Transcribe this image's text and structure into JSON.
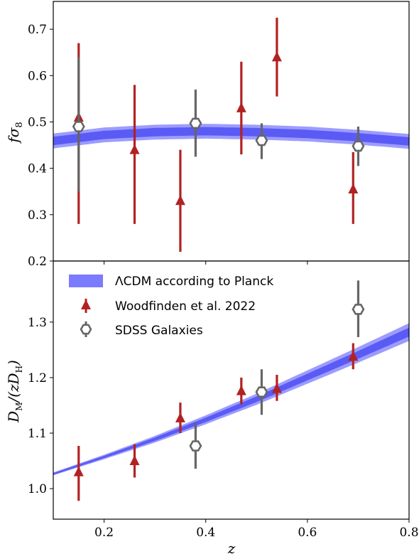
{
  "chart_data": [
    {
      "type": "scatter",
      "panel": "top",
      "ylabel": "fσ8",
      "ylim": [
        0.2,
        0.76
      ],
      "xlim": [
        0.1,
        0.8
      ],
      "yticks": [
        "0.2",
        "0.3",
        "0.4",
        "0.5",
        "0.6",
        "0.7"
      ],
      "ytick_values": [
        0.2,
        0.3,
        0.4,
        0.5,
        0.6,
        0.7
      ],
      "grid": false,
      "band": {
        "name": "ΛCDM according to Planck",
        "color": "#5555ee",
        "x": [
          0.1,
          0.2,
          0.3,
          0.4,
          0.5,
          0.6,
          0.7,
          0.8
        ],
        "inner": [
          [
            0.45,
            0.468
          ],
          [
            0.463,
            0.481
          ],
          [
            0.469,
            0.487
          ],
          [
            0.471,
            0.489
          ],
          [
            0.469,
            0.487
          ],
          [
            0.465,
            0.483
          ],
          [
            0.458,
            0.476
          ],
          [
            0.449,
            0.467
          ]
        ],
        "outer": [
          [
            0.443,
            0.475
          ],
          [
            0.456,
            0.488
          ],
          [
            0.462,
            0.494
          ],
          [
            0.464,
            0.496
          ],
          [
            0.462,
            0.494
          ],
          [
            0.458,
            0.49
          ],
          [
            0.451,
            0.483
          ],
          [
            0.442,
            0.474
          ]
        ]
      },
      "series": [
        {
          "name": "Woodfinden et al. 2022",
          "color": "#b22222",
          "marker": "triangle",
          "points": [
            {
              "x": 0.15,
              "y": 0.51,
              "lo": 0.28,
              "hi": 0.67
            },
            {
              "x": 0.26,
              "y": 0.44,
              "lo": 0.28,
              "hi": 0.58
            },
            {
              "x": 0.35,
              "y": 0.33,
              "lo": 0.22,
              "hi": 0.44
            },
            {
              "x": 0.47,
              "y": 0.53,
              "lo": 0.43,
              "hi": 0.63
            },
            {
              "x": 0.54,
              "y": 0.64,
              "lo": 0.555,
              "hi": 0.725
            },
            {
              "x": 0.69,
              "y": 0.355,
              "lo": 0.28,
              "hi": 0.435
            }
          ]
        },
        {
          "name": "SDSS Galaxies",
          "color": "#666666",
          "marker": "hexagon",
          "points": [
            {
              "x": 0.15,
              "y": 0.49,
              "lo": 0.35,
              "hi": 0.64
            },
            {
              "x": 0.38,
              "y": 0.497,
              "lo": 0.425,
              "hi": 0.57
            },
            {
              "x": 0.51,
              "y": 0.46,
              "lo": 0.42,
              "hi": 0.497
            },
            {
              "x": 0.7,
              "y": 0.448,
              "lo": 0.405,
              "hi": 0.49
            }
          ]
        }
      ]
    },
    {
      "type": "scatter",
      "panel": "bottom",
      "xlabel": "z",
      "ylabel": "DM/(zDH)",
      "xlim": [
        0.1,
        0.8
      ],
      "ylim": [
        0.945,
        1.41
      ],
      "xticks": [
        "0.2",
        "0.4",
        "0.6",
        "0.8"
      ],
      "xtick_values": [
        0.2,
        0.4,
        0.6,
        0.8
      ],
      "yticks": [
        "1.0",
        "1.1",
        "1.2",
        "1.3"
      ],
      "ytick_values": [
        1.0,
        1.1,
        1.2,
        1.3
      ],
      "grid": false,
      "legend_position": "upper-left",
      "band": {
        "name": "ΛCDM according to Planck",
        "color": "#5555ee",
        "x": [
          0.1,
          0.2,
          0.3,
          0.4,
          0.5,
          0.6,
          0.7,
          0.8
        ],
        "inner": [
          [
            1.025,
            1.028
          ],
          [
            1.055,
            1.059
          ],
          [
            1.086,
            1.092
          ],
          [
            1.12,
            1.128
          ],
          [
            1.156,
            1.166
          ],
          [
            1.195,
            1.207
          ],
          [
            1.234,
            1.248
          ],
          [
            1.274,
            1.29
          ]
        ],
        "outer": [
          [
            1.024,
            1.029
          ],
          [
            1.053,
            1.061
          ],
          [
            1.083,
            1.095
          ],
          [
            1.116,
            1.132
          ],
          [
            1.151,
            1.171
          ],
          [
            1.189,
            1.213
          ],
          [
            1.227,
            1.255
          ],
          [
            1.266,
            1.298
          ]
        ]
      },
      "series": [
        {
          "name": "Woodfinden et al. 2022",
          "color": "#b22222",
          "marker": "triangle",
          "points": [
            {
              "x": 0.15,
              "y": 1.03,
              "lo": 0.978,
              "hi": 1.077
            },
            {
              "x": 0.26,
              "y": 1.05,
              "lo": 1.02,
              "hi": 1.08
            },
            {
              "x": 0.35,
              "y": 1.127,
              "lo": 1.1,
              "hi": 1.155
            },
            {
              "x": 0.47,
              "y": 1.176,
              "lo": 1.152,
              "hi": 1.2
            },
            {
              "x": 0.54,
              "y": 1.18,
              "lo": 1.158,
              "hi": 1.205
            },
            {
              "x": 0.69,
              "y": 1.238,
              "lo": 1.215,
              "hi": 1.262
            }
          ]
        },
        {
          "name": "SDSS Galaxies",
          "color": "#666666",
          "marker": "hexagon",
          "points": [
            {
              "x": 0.38,
              "y": 1.077,
              "lo": 1.036,
              "hi": 1.118
            },
            {
              "x": 0.51,
              "y": 1.174,
              "lo": 1.133,
              "hi": 1.215
            },
            {
              "x": 0.7,
              "y": 1.323,
              "lo": 1.273,
              "hi": 1.375
            }
          ]
        }
      ]
    }
  ],
  "legend": {
    "entries": [
      {
        "label": "ΛCDM according to Planck",
        "kind": "band",
        "color": "#7b7bff"
      },
      {
        "label": "Woodfinden et al. 2022",
        "kind": "triangle",
        "color": "#b22222"
      },
      {
        "label": "SDSS Galaxies",
        "kind": "hexagon",
        "color": "#666666"
      }
    ]
  }
}
